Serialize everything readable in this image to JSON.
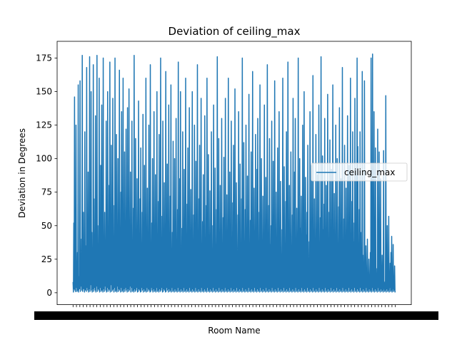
{
  "chart_data": {
    "type": "line",
    "title": "Deviation of ceiling_max",
    "xlabel": "Room Name",
    "ylabel": "Deviation in Degrees",
    "ylim": [
      -8.9,
      187.5
    ],
    "yticks": [
      0,
      25,
      50,
      75,
      100,
      125,
      150,
      175
    ],
    "x_tick_labels_illegible": true,
    "legend_position": "center-right",
    "grid": false,
    "series": [
      {
        "name": "ceiling_max",
        "color": "#1f77b4",
        "values": [
          8,
          0.5,
          52,
          3,
          146,
          2,
          10,
          0.8,
          125,
          4,
          18,
          1,
          30,
          2,
          155,
          0.5,
          6,
          12,
          3,
          158,
          1,
          22,
          5,
          40,
          2,
          177,
          1,
          9,
          60,
          3,
          14,
          0.5,
          120,
          7,
          2,
          35,
          1,
          168,
          4,
          20,
          2,
          90,
          0.5,
          11,
          3,
          176,
          1,
          28,
          6,
          150,
          2,
          45,
          0.5,
          15,
          3,
          170,
          1,
          70,
          4,
          25,
          2,
          132,
          0.5,
          19,
          5,
          177,
          1,
          50,
          3,
          12,
          2,
          160,
          0.5,
          33,
          4,
          95,
          1,
          8,
          140,
          2,
          27,
          0.5,
          175,
          3,
          16,
          1,
          60,
          5,
          38,
          2,
          128,
          0.5,
          22,
          4,
          150,
          1,
          13,
          3,
          80,
          2,
          172,
          0.5,
          41,
          6,
          110,
          1,
          17,
          2,
          145,
          3,
          26,
          0.5,
          65,
          4,
          175,
          1,
          31,
          2,
          118,
          0.5,
          14,
          5,
          100,
          1,
          48,
          3,
          166,
          2,
          20,
          0.5,
          75,
          4,
          135,
          1,
          24,
          2,
          160,
          0.5,
          55,
          3,
          105,
          1,
          29,
          4,
          122,
          2,
          11,
          0.5,
          138,
          3,
          44,
          1,
          152,
          2,
          18,
          5,
          90,
          0.5,
          36,
          4,
          128,
          1,
          21,
          2,
          63,
          0.5,
          177,
          3,
          12,
          1,
          115,
          2,
          39,
          4,
          85,
          0.5,
          26,
          1,
          143,
          3,
          15,
          2,
          70,
          0.5,
          108,
          1,
          32,
          4,
          60,
          2,
          133,
          0.5,
          19,
          3,
          95,
          1,
          47,
          2,
          160,
          0.5,
          23,
          4,
          78,
          1,
          14,
          3,
          125,
          2,
          30,
          0.5,
          170,
          1,
          17,
          4,
          52,
          2,
          100,
          0.5,
          27,
          3,
          135,
          1,
          42,
          2,
          88,
          0.5,
          13,
          4,
          150,
          1,
          35,
          2,
          68,
          0.5,
          118,
          3,
          20,
          1,
          175,
          2,
          28,
          4,
          57,
          0.5,
          128,
          1,
          16,
          3,
          82,
          2,
          40,
          0.5,
          165,
          1,
          24,
          4,
          96,
          2,
          11,
          0.5,
          140,
          3,
          33,
          1,
          72,
          2,
          155,
          0.5,
          18,
          4,
          45,
          1,
          113,
          2,
          26,
          0.5,
          100,
          3,
          14,
          1,
          130,
          2,
          37,
          0.5,
          62,
          4,
          172,
          1,
          21,
          2,
          85,
          0.5,
          150,
          3,
          29,
          1,
          48,
          2,
          120,
          0.5,
          15,
          4,
          92,
          1,
          34,
          2,
          160,
          0.5,
          22,
          3,
          66,
          1,
          108,
          2,
          12,
          0.5,
          138,
          4,
          43,
          1,
          77,
          2,
          25,
          0.5,
          150,
          3,
          18,
          1,
          58,
          2,
          125,
          0.5,
          31,
          4,
          98,
          1,
          14,
          2,
          170,
          0.5,
          38,
          3,
          70,
          1,
          110,
          2,
          20,
          0.5,
          145,
          4,
          27,
          1,
          53,
          2,
          88,
          0.5,
          16,
          3,
          132,
          1,
          41,
          2,
          65,
          0.5,
          160,
          4,
          23,
          1,
          103,
          2,
          33,
          0.5,
          76,
          3,
          13,
          1,
          120,
          2,
          28,
          0.5,
          50,
          4,
          140,
          1,
          19,
          2,
          93,
          0.5,
          36,
          3,
          62,
          1,
          176,
          2,
          24,
          0.5,
          115,
          4,
          45,
          1,
          80,
          2,
          17,
          0.5,
          130,
          3,
          30,
          1,
          56,
          2,
          101,
          0.5,
          12,
          4,
          145,
          1,
          39,
          2,
          73,
          0.5,
          26,
          3,
          160,
          1,
          48,
          2,
          90,
          0.5,
          15,
          4,
          128,
          1,
          34,
          2,
          67,
          0.5,
          110,
          3,
          21,
          1,
          152,
          2,
          43,
          0.5,
          82,
          4,
          29,
          1,
          58,
          2,
          135,
          0.5,
          18,
          3,
          96,
          1,
          37,
          2,
          70,
          0.5,
          175,
          4,
          25,
          1,
          112,
          2,
          14,
          0.5,
          62,
          3,
          125,
          1,
          40,
          2,
          87,
          0.5,
          31,
          4,
          148,
          1,
          20,
          2,
          54,
          0.5,
          105,
          3,
          35,
          1,
          165,
          2,
          27,
          0.5,
          78,
          4,
          46,
          1,
          118,
          2,
          16,
          0.5,
          92,
          3,
          130,
          1,
          38,
          2,
          60,
          0.5,
          155,
          4,
          24,
          1,
          100,
          2,
          33,
          0.5,
          72,
          3,
          12,
          1,
          140,
          2,
          44,
          0.5,
          86,
          4,
          28,
          1,
          170,
          2,
          19,
          0.5,
          65,
          3,
          115,
          1,
          36,
          2,
          50,
          0.5,
          128,
          4,
          22,
          1,
          98,
          2,
          41,
          0.5,
          158,
          3,
          30,
          1,
          75,
          2,
          17,
          0.5,
          108,
          4,
          55,
          1,
          135,
          2,
          26,
          0.5,
          83,
          3,
          14,
          1,
          47,
          2,
          160,
          0.5,
          39,
          4,
          94,
          1,
          21,
          2,
          68,
          0.5,
          120,
          3,
          32,
          1,
          172,
          2,
          45,
          0.5,
          80,
          4,
          13,
          1,
          105,
          2,
          35,
          0.5,
          58,
          3,
          145,
          1,
          24,
          2,
          90,
          0.5,
          130,
          4,
          40,
          1,
          63,
          2,
          20,
          0.5,
          175,
          3,
          29,
          1,
          100,
          2,
          48,
          0.5,
          72,
          4,
          16,
          1,
          125,
          2,
          34,
          0.5,
          150,
          3,
          25,
          1,
          86,
          2,
          43,
          0.5,
          60,
          4,
          110,
          1,
          19,
          2,
          38,
          0.5,
          135,
          3,
          28,
          1,
          95,
          2,
          52,
          0.5,
          162,
          4,
          22,
          1,
          70,
          2,
          37,
          0.5,
          118,
          3,
          15,
          1,
          88,
          2,
          44,
          0.5,
          140,
          4,
          31,
          1,
          56,
          2,
          176,
          0.5,
          26,
          3,
          102,
          1,
          47,
          2,
          66,
          0.5,
          130,
          4,
          18,
          1,
          80,
          2,
          35,
          0.5,
          148,
          3,
          23,
          1,
          60,
          2,
          114,
          0.5,
          42,
          4,
          92,
          1,
          27,
          2,
          155,
          0.5,
          33,
          3,
          74,
          1,
          20,
          2,
          125,
          0.5,
          49,
          4,
          100,
          1,
          29,
          2,
          64,
          0.5,
          138,
          3,
          17,
          1,
          85,
          2,
          40,
          0.5,
          168,
          4,
          24,
          1,
          55,
          2,
          110,
          0.5,
          36,
          3,
          78,
          1,
          14,
          2,
          132,
          0.5,
          45,
          4,
          95,
          1,
          30,
          2,
          160,
          0.5,
          22,
          3,
          68,
          1,
          120,
          2,
          38,
          0.5,
          52,
          4,
          145,
          1,
          26,
          2,
          88,
          0.5,
          175,
          3,
          109,
          1,
          31,
          2,
          62,
          0.5,
          120,
          4,
          45,
          1,
          20,
          2,
          165,
          0.5,
          28,
          3,
          18,
          1,
          158,
          2,
          15,
          0.5,
          35,
          4,
          12,
          1,
          40,
          2,
          10,
          0.5,
          25,
          3,
          8,
          1,
          30,
          2,
          175,
          0.5,
          9,
          4,
          178,
          1,
          12,
          2,
          135,
          0.5,
          20,
          3,
          108,
          1,
          14,
          2,
          18,
          0.5,
          122,
          4,
          6,
          1,
          105,
          2,
          10,
          0.5,
          85,
          3,
          5,
          1,
          28,
          2,
          12,
          0.5,
          106,
          4,
          3,
          1,
          8,
          2,
          147,
          0.5,
          15,
          3,
          50,
          1,
          18,
          2,
          57,
          0.5,
          6,
          4,
          22,
          1,
          30,
          2,
          42,
          0.5,
          4,
          3,
          36,
          1,
          12,
          2,
          20,
          0.5,
          1
        ]
      }
    ]
  }
}
